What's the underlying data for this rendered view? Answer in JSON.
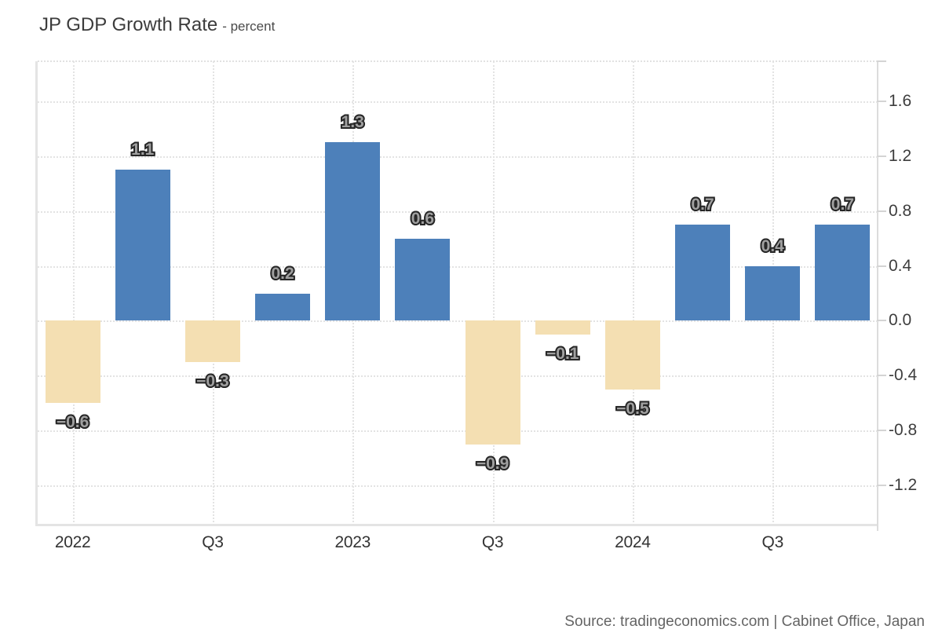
{
  "header": {
    "title": "JP GDP Growth Rate",
    "subtitle": "- percent"
  },
  "footer": {
    "source": "Source: tradingeconomics.com | Cabinet Office, Japan"
  },
  "chart_data": {
    "type": "bar",
    "title": "JP GDP Growth Rate",
    "unit": "percent",
    "categories": [
      "2022",
      "",
      "Q3",
      "",
      "2023",
      "",
      "Q3",
      "",
      "2024",
      "",
      "Q3",
      ""
    ],
    "values": [
      -0.6,
      1.1,
      -0.3,
      0.2,
      1.3,
      0.6,
      -0.9,
      -0.1,
      -0.5,
      0.7,
      0.4,
      0.7
    ],
    "data_labels": [
      "−0.6",
      "1.1",
      "−0.3",
      "0.2",
      "1.3",
      "0.6",
      "−0.9",
      "−0.1",
      "−0.5",
      "0.7",
      "0.4",
      "0.7"
    ],
    "x_tick_labels": [
      "2022",
      "Q3",
      "2023",
      "Q3",
      "2024",
      "Q3"
    ],
    "x_tick_indices": [
      0,
      2,
      4,
      6,
      8,
      10
    ],
    "y_ticks": [
      1.6,
      1.2,
      0.8,
      0.4,
      0.0,
      -0.4,
      -0.8,
      -1.2
    ],
    "y_tick_labels": [
      "1.6",
      "1.2",
      "0.8",
      "0.4",
      "0.0",
      "-0.4",
      "-0.8",
      "-1.2"
    ],
    "ylim": [
      -1.49,
      1.89
    ],
    "grid": "dotted",
    "legend": "none",
    "colors": {
      "positive_bar": "#4d80ba",
      "negative_bar": "#f4dfb2"
    }
  }
}
